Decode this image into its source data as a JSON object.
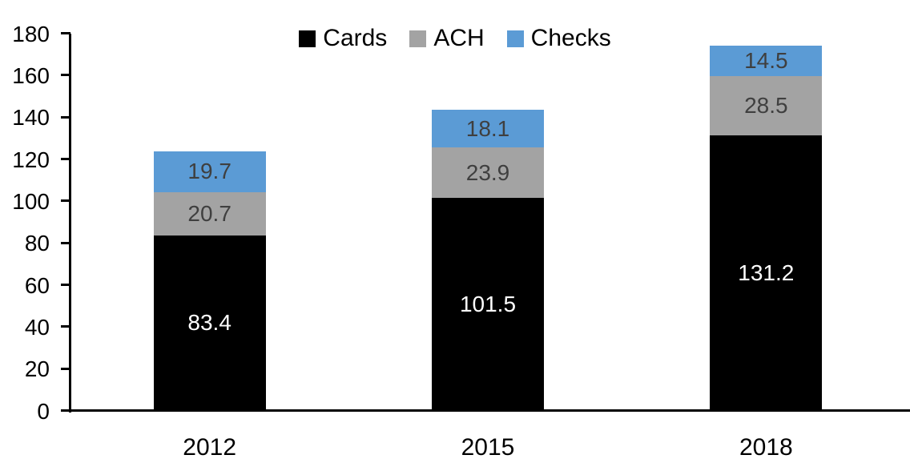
{
  "chart_data": {
    "type": "bar",
    "stacked": true,
    "title": "",
    "categories": [
      "2012",
      "2015",
      "2018"
    ],
    "series": [
      {
        "name": "Cards",
        "color": "#000000",
        "label_color": "#ffffff",
        "values": [
          83.4,
          101.5,
          131.2
        ]
      },
      {
        "name": "ACH",
        "color": "#a3a3a3",
        "label_color": "#3f3f3f",
        "values": [
          20.7,
          23.9,
          28.5
        ]
      },
      {
        "name": "Checks",
        "color": "#5b9bd5",
        "label_color": "#3f3f3f",
        "values": [
          19.7,
          18.1,
          14.5
        ]
      }
    ],
    "ylim": [
      0,
      180
    ],
    "y_ticks": [
      0,
      20,
      40,
      60,
      80,
      100,
      120,
      140,
      160,
      180
    ],
    "value_decimals": 1,
    "grid": false,
    "legend_position": "top",
    "axis_color": "#000000",
    "background_color": "#ffffff"
  }
}
